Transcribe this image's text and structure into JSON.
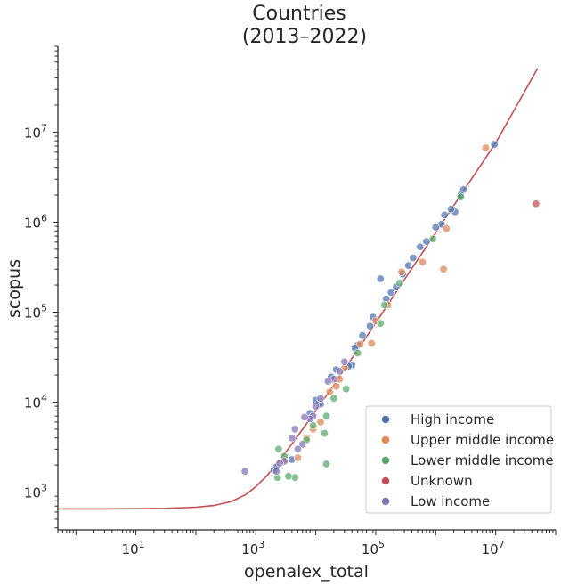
{
  "chart_data": {
    "type": "scatter",
    "title_lines": [
      "Countries",
      "(2013–2022)"
    ],
    "xlabel": "openalex_total",
    "ylabel": "scopus",
    "x_scale": "log",
    "y_scale": "log",
    "xlim": [
      0.5,
      100000000
    ],
    "ylim": [
      380,
      90000000
    ],
    "x_ticks": [
      {
        "value": 10,
        "base": "10",
        "exp": "1"
      },
      {
        "value": 1000,
        "base": "10",
        "exp": "3"
      },
      {
        "value": 100000,
        "base": "10",
        "exp": "5"
      },
      {
        "value": 10000000,
        "base": "10",
        "exp": "7"
      }
    ],
    "y_ticks": [
      {
        "value": 1000,
        "base": "10",
        "exp": "3"
      },
      {
        "value": 10000,
        "base": "10",
        "exp": "4"
      },
      {
        "value": 100000,
        "base": "10",
        "exp": "5"
      },
      {
        "value": 1000000,
        "base": "10",
        "exp": "6"
      },
      {
        "value": 10000000,
        "base": "10",
        "exp": "7"
      }
    ],
    "grid": false,
    "legend_position": "lower-right",
    "fit_line": {
      "color": "#c44e52",
      "points": [
        [
          0.5,
          650
        ],
        [
          1,
          650
        ],
        [
          3,
          651
        ],
        [
          10,
          653
        ],
        [
          30,
          659
        ],
        [
          100,
          680
        ],
        [
          200,
          710
        ],
        [
          400,
          790
        ],
        [
          700,
          950
        ],
        [
          1000,
          1150
        ],
        [
          1500,
          1500
        ],
        [
          2000,
          1900
        ],
        [
          3000,
          2650
        ],
        [
          5000,
          4200
        ],
        [
          10000,
          8000
        ],
        [
          30000,
          23000
        ],
        [
          100000,
          76000
        ],
        [
          300000,
          230000
        ],
        [
          1000000,
          760000
        ],
        [
          3000000,
          2300000
        ],
        [
          10000000,
          7600000
        ],
        [
          50000000,
          51000000
        ]
      ]
    },
    "series": [
      {
        "name": "High income",
        "color": "#4c72b0",
        "points": [
          [
            9500000,
            7300000
          ],
          [
            2900000,
            2300000
          ],
          [
            2600000,
            2000000
          ],
          [
            2100000,
            1300000
          ],
          [
            1800000,
            1400000
          ],
          [
            1400000,
            1200000
          ],
          [
            1250000,
            950000
          ],
          [
            1000000,
            880000
          ],
          [
            700000,
            610000
          ],
          [
            550000,
            530000
          ],
          [
            420000,
            400000
          ],
          [
            350000,
            330000
          ],
          [
            280000,
            265000
          ],
          [
            220000,
            190000
          ],
          [
            180000,
            165000
          ],
          [
            150000,
            140000
          ],
          [
            120000,
            235000
          ],
          [
            90000,
            88000
          ],
          [
            80000,
            70000
          ],
          [
            60000,
            55000
          ],
          [
            50000,
            43000
          ],
          [
            45000,
            40000
          ],
          [
            40000,
            26000
          ],
          [
            35000,
            25000
          ],
          [
            22000,
            23000
          ],
          [
            18000,
            19000
          ],
          [
            12000,
            9500
          ],
          [
            10000,
            10500
          ],
          [
            8000,
            7500
          ],
          [
            4000,
            2300
          ],
          [
            2200,
            1900
          ],
          [
            2000,
            1750
          ]
        ]
      },
      {
        "name": "Upper middle income",
        "color": "#dd8452",
        "points": [
          [
            6800000,
            6700000
          ],
          [
            1500000,
            850000
          ],
          [
            1350000,
            300000
          ],
          [
            600000,
            360000
          ],
          [
            270000,
            280000
          ],
          [
            160000,
            120000
          ],
          [
            100000,
            80000
          ],
          [
            85000,
            45000
          ],
          [
            55000,
            44000
          ],
          [
            30000,
            24000
          ],
          [
            25000,
            18000
          ],
          [
            22000,
            15000
          ],
          [
            17000,
            13000
          ],
          [
            12000,
            6000
          ],
          [
            9000,
            5000
          ],
          [
            7000,
            4000
          ],
          [
            5000,
            2400
          ],
          [
            3000,
            2300
          ]
        ]
      },
      {
        "name": "Lower middle income",
        "color": "#55a868",
        "points": [
          [
            2600000,
            1900000
          ],
          [
            900000,
            650000
          ],
          [
            250000,
            210000
          ],
          [
            140000,
            120000
          ],
          [
            120000,
            75000
          ],
          [
            50000,
            35000
          ],
          [
            32000,
            14000
          ],
          [
            20000,
            11000
          ],
          [
            15000,
            7000
          ],
          [
            14000,
            4500
          ],
          [
            9000,
            5500
          ],
          [
            7000,
            3800
          ],
          [
            4500,
            1450
          ],
          [
            3500,
            1500
          ],
          [
            3000,
            2500
          ],
          [
            2300,
            1450
          ],
          [
            2400,
            3000
          ],
          [
            15000,
            2050
          ]
        ]
      },
      {
        "name": "Unknown",
        "color": "#c44e52",
        "points": [
          [
            47000000,
            1600000
          ]
        ]
      },
      {
        "name": "Low income",
        "color": "#8172b3",
        "points": [
          [
            30000,
            28000
          ],
          [
            25000,
            22000
          ],
          [
            20000,
            18000
          ],
          [
            16000,
            17000
          ],
          [
            12000,
            11000
          ],
          [
            10000,
            9000
          ],
          [
            9000,
            7000
          ],
          [
            8000,
            6500
          ],
          [
            6500,
            6800
          ],
          [
            6000,
            3400
          ],
          [
            5000,
            3000
          ],
          [
            4500,
            5000
          ],
          [
            4000,
            4000
          ],
          [
            3000,
            2200
          ],
          [
            2500,
            2100
          ],
          [
            2200,
            1700
          ],
          [
            660,
            1700
          ]
        ]
      }
    ]
  }
}
